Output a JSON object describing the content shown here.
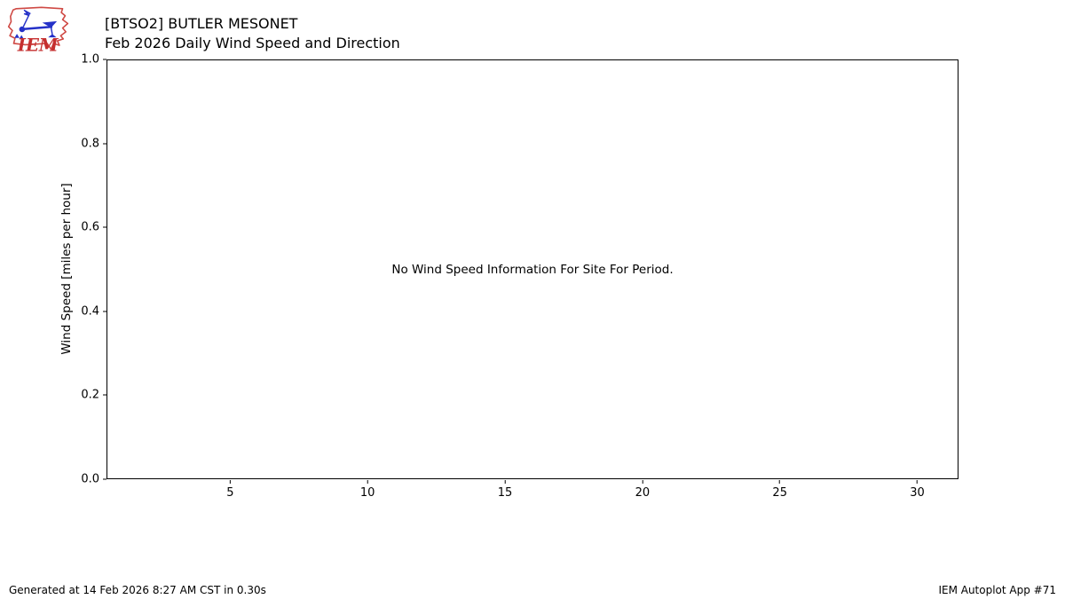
{
  "header": {
    "logo_text": "IEM",
    "title_line1": "[BTSO2] BUTLER MESONET",
    "title_line2": "Feb 2026 Daily Wind Speed and Direction"
  },
  "chart_data": {
    "type": "bar",
    "title": "[BTSO2] BUTLER MESONET",
    "subtitle": "Feb 2026 Daily Wind Speed and Direction",
    "xlabel": "",
    "ylabel": "Wind Speed [miles per hour]",
    "xlim": [
      0.5,
      31.5
    ],
    "ylim": [
      0.0,
      1.0
    ],
    "x_ticks": [
      {
        "value": 5,
        "label": "5"
      },
      {
        "value": 10,
        "label": "10"
      },
      {
        "value": 15,
        "label": "15"
      },
      {
        "value": 20,
        "label": "20"
      },
      {
        "value": 25,
        "label": "25"
      },
      {
        "value": 30,
        "label": "30"
      }
    ],
    "y_ticks": [
      {
        "value": 0.0,
        "label": "0.0"
      },
      {
        "value": 0.2,
        "label": "0.2"
      },
      {
        "value": 0.4,
        "label": "0.4"
      },
      {
        "value": 0.6,
        "label": "0.6"
      },
      {
        "value": 0.8,
        "label": "0.8"
      },
      {
        "value": 1.0,
        "label": "1.0"
      }
    ],
    "categories": [],
    "values": [],
    "series": [],
    "grid": false,
    "legend": "none",
    "annotation": "No Wind Speed Information For Site For Period."
  },
  "footer": {
    "generated": "Generated at 14 Feb 2026 8:27 AM CST in 0.30s",
    "app_credit": "IEM Autoplot App #71"
  },
  "colors": {
    "background": "#ffffff",
    "axis": "#000000",
    "text": "#000000",
    "logo_outline_red": "#cf4944",
    "logo_text_red": "#c52f2f",
    "logo_blue": "#2431c8"
  }
}
